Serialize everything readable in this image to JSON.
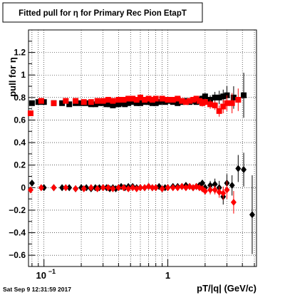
{
  "chart_data": {
    "type": "scatter",
    "title": "Fitted pull for  η for Primary Rec Pion EtapT",
    "xlabel": "pT/|q| (GeV/c)",
    "ylabel": "pull for  η",
    "xscale": "log",
    "xlim": [
      0.075,
      5.2
    ],
    "ylim": [
      -0.7,
      1.4
    ],
    "grid": true,
    "x_ticks": [
      {
        "value": 0.1,
        "label": "10^{-1}",
        "base": "10",
        "exp": "−1"
      },
      {
        "value": 1,
        "label": "1"
      }
    ],
    "y_ticks": [
      {
        "value": -0.6,
        "label": "−0.6"
      },
      {
        "value": -0.4,
        "label": "−0.4"
      },
      {
        "value": -0.2,
        "label": "−0.2"
      },
      {
        "value": 0,
        "label": "0"
      },
      {
        "value": 0.2,
        "label": "0.2"
      },
      {
        "value": 0.4,
        "label": "0.4"
      },
      {
        "value": 0.6,
        "label": "0.6"
      },
      {
        "value": 0.8,
        "label": "0.8"
      },
      {
        "value": 1,
        "label": "1"
      },
      {
        "value": 1.2,
        "label": "1.2"
      }
    ],
    "series": [
      {
        "marker": "square",
        "color": "#000000",
        "x": [
          0.08,
          0.09,
          0.1,
          0.12,
          0.14,
          0.16,
          0.18,
          0.2,
          0.22,
          0.24,
          0.26,
          0.28,
          0.3,
          0.32,
          0.34,
          0.36,
          0.38,
          0.4,
          0.42,
          0.45,
          0.48,
          0.52,
          0.56,
          0.6,
          0.65,
          0.7,
          0.75,
          0.8,
          0.85,
          0.9,
          0.95,
          1.0,
          1.1,
          1.2,
          1.3,
          1.4,
          1.5,
          1.6,
          1.7,
          1.8,
          1.9,
          2.0,
          2.2,
          2.4,
          2.6,
          2.8,
          3.0,
          3.4,
          4.1
        ],
        "y": [
          0.75,
          0.76,
          0.76,
          0.75,
          0.75,
          0.74,
          0.75,
          0.75,
          0.75,
          0.74,
          0.74,
          0.75,
          0.75,
          0.74,
          0.74,
          0.73,
          0.74,
          0.74,
          0.75,
          0.74,
          0.75,
          0.76,
          0.75,
          0.75,
          0.76,
          0.76,
          0.75,
          0.75,
          0.76,
          0.77,
          0.76,
          0.77,
          0.76,
          0.75,
          0.76,
          0.77,
          0.76,
          0.77,
          0.76,
          0.78,
          0.79,
          0.81,
          0.78,
          0.8,
          0.8,
          0.81,
          0.82,
          0.8,
          0.82
        ],
        "err": [
          0.02,
          0.02,
          0.015,
          0.01,
          0.01,
          0.01,
          0.01,
          0.01,
          0.01,
          0.01,
          0.01,
          0.01,
          0.01,
          0.01,
          0.01,
          0.01,
          0.01,
          0.01,
          0.01,
          0.01,
          0.01,
          0.01,
          0.01,
          0.01,
          0.01,
          0.01,
          0.01,
          0.01,
          0.01,
          0.01,
          0.01,
          0.01,
          0.01,
          0.01,
          0.015,
          0.015,
          0.015,
          0.02,
          0.02,
          0.02,
          0.03,
          0.03,
          0.04,
          0.05,
          0.06,
          0.06,
          0.08,
          0.1,
          0.2
        ]
      },
      {
        "marker": "square",
        "color": "#ff0000",
        "x": [
          0.078,
          0.095,
          0.12,
          0.15,
          0.18,
          0.21,
          0.24,
          0.27,
          0.3,
          0.33,
          0.36,
          0.4,
          0.44,
          0.48,
          0.52,
          0.56,
          0.6,
          0.65,
          0.7,
          0.75,
          0.8,
          0.9,
          1.0,
          1.1,
          1.2,
          1.3,
          1.4,
          1.5,
          1.6,
          1.7,
          1.8,
          1.9,
          2.0,
          2.2,
          2.4,
          2.6,
          2.8,
          3.0,
          3.3,
          3.7
        ],
        "y": [
          0.66,
          0.77,
          0.75,
          0.77,
          0.77,
          0.76,
          0.76,
          0.77,
          0.77,
          0.78,
          0.77,
          0.78,
          0.78,
          0.79,
          0.79,
          0.78,
          0.8,
          0.78,
          0.79,
          0.78,
          0.79,
          0.79,
          0.78,
          0.78,
          0.79,
          0.77,
          0.76,
          0.77,
          0.78,
          0.79,
          0.77,
          0.75,
          0.76,
          0.74,
          0.73,
          0.68,
          0.72,
          0.75,
          0.75,
          0.78
        ],
        "err": [
          0.02,
          0.015,
          0.01,
          0.01,
          0.01,
          0.01,
          0.01,
          0.01,
          0.01,
          0.01,
          0.01,
          0.01,
          0.01,
          0.01,
          0.01,
          0.01,
          0.01,
          0.01,
          0.01,
          0.01,
          0.01,
          0.01,
          0.01,
          0.01,
          0.01,
          0.01,
          0.015,
          0.015,
          0.02,
          0.02,
          0.02,
          0.03,
          0.03,
          0.04,
          0.04,
          0.05,
          0.06,
          0.07,
          0.09,
          0.1
        ]
      },
      {
        "marker": "diamond",
        "color": "#000000",
        "x": [
          0.08,
          0.1,
          0.12,
          0.14,
          0.16,
          0.18,
          0.2,
          0.22,
          0.24,
          0.26,
          0.28,
          0.3,
          0.32,
          0.34,
          0.36,
          0.38,
          0.4,
          0.42,
          0.45,
          0.48,
          0.52,
          0.56,
          0.6,
          0.65,
          0.7,
          0.75,
          0.8,
          0.85,
          0.9,
          0.95,
          1.0,
          1.1,
          1.2,
          1.3,
          1.4,
          1.5,
          1.6,
          1.7,
          1.8,
          1.9,
          2.0,
          2.2,
          2.4,
          2.6,
          2.8,
          3.0,
          3.3,
          3.7,
          4.1,
          4.8
        ],
        "y": [
          0.04,
          0.0,
          0.0,
          0.0,
          0.0,
          -0.01,
          0.0,
          0.0,
          -0.01,
          0.0,
          0.0,
          0.0,
          0.0,
          -0.01,
          0.0,
          -0.01,
          0.0,
          0.01,
          0.0,
          0.01,
          0.01,
          0.0,
          0.0,
          0.0,
          0.01,
          0.0,
          0.0,
          0.01,
          -0.01,
          0.0,
          0.0,
          0.01,
          0.01,
          0.01,
          0.02,
          0.01,
          0.0,
          0.01,
          0.02,
          0.04,
          0.0,
          0.02,
          0.03,
          0.0,
          -0.08,
          0.04,
          0.02,
          0.17,
          0.16,
          -0.24
        ],
        "err": [
          0.02,
          0.015,
          0.01,
          0.01,
          0.01,
          0.01,
          0.01,
          0.01,
          0.01,
          0.01,
          0.01,
          0.01,
          0.01,
          0.01,
          0.01,
          0.01,
          0.01,
          0.01,
          0.01,
          0.01,
          0.01,
          0.01,
          0.01,
          0.01,
          0.01,
          0.01,
          0.01,
          0.01,
          0.01,
          0.01,
          0.01,
          0.015,
          0.015,
          0.015,
          0.02,
          0.02,
          0.02,
          0.02,
          0.02,
          0.03,
          0.03,
          0.04,
          0.05,
          0.06,
          0.07,
          0.08,
          0.09,
          0.12,
          0.15,
          0.35
        ]
      },
      {
        "marker": "diamond",
        "color": "#ff0000",
        "x": [
          0.078,
          0.095,
          0.12,
          0.15,
          0.18,
          0.21,
          0.24,
          0.27,
          0.3,
          0.33,
          0.36,
          0.4,
          0.44,
          0.48,
          0.52,
          0.56,
          0.6,
          0.65,
          0.7,
          0.75,
          0.8,
          0.9,
          1.0,
          1.1,
          1.2,
          1.3,
          1.4,
          1.5,
          1.6,
          1.7,
          1.8,
          1.9,
          2.0,
          2.2,
          2.4,
          2.6,
          2.8,
          3.0,
          3.4
        ],
        "y": [
          -0.02,
          0.0,
          0.0,
          0.0,
          -0.01,
          -0.01,
          0.0,
          -0.01,
          0.0,
          0.0,
          -0.01,
          0.0,
          0.0,
          -0.01,
          0.0,
          -0.01,
          0.0,
          0.0,
          0.01,
          0.0,
          0.0,
          -0.01,
          0.0,
          0.0,
          0.0,
          0.01,
          0.0,
          0.01,
          0.0,
          0.01,
          0.0,
          -0.01,
          -0.03,
          -0.02,
          -0.02,
          -0.04,
          -0.05,
          -0.02,
          -0.13
        ],
        "err": [
          0.02,
          0.015,
          0.01,
          0.01,
          0.01,
          0.01,
          0.01,
          0.01,
          0.01,
          0.01,
          0.01,
          0.01,
          0.01,
          0.01,
          0.01,
          0.01,
          0.01,
          0.01,
          0.01,
          0.01,
          0.01,
          0.01,
          0.01,
          0.01,
          0.01,
          0.01,
          0.015,
          0.015,
          0.02,
          0.02,
          0.02,
          0.03,
          0.03,
          0.04,
          0.04,
          0.05,
          0.06,
          0.08,
          0.1
        ]
      }
    ]
  },
  "footer": {
    "timestamp": "Sat Sep  9 12:31:59 2017"
  }
}
